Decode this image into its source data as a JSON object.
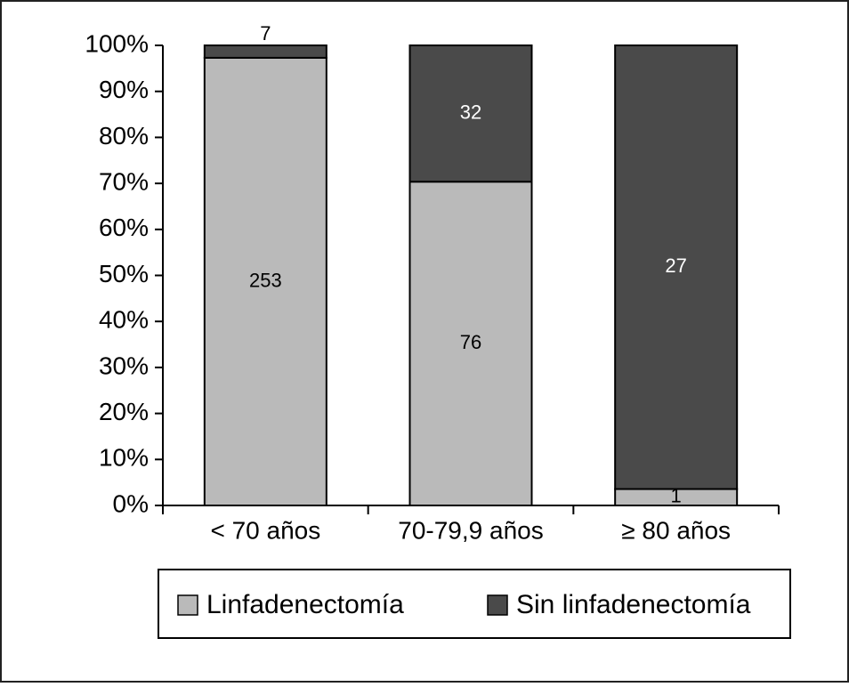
{
  "chart_data": {
    "type": "bar",
    "stacking": "percent",
    "categories": [
      "< 70 años",
      "70-79,9 años",
      "≥ 80 años"
    ],
    "series": [
      {
        "name": "Linfadenectomía",
        "color": "#bababa",
        "values": [
          253,
          76,
          1
        ]
      },
      {
        "name": "Sin linfadenectomía",
        "color": "#4a4a4a",
        "values": [
          7,
          32,
          27
        ]
      }
    ],
    "ylim": [
      0,
      100
    ],
    "yticks": [
      {
        "value": 0,
        "label": "0%"
      },
      {
        "value": 10,
        "label": "10%"
      },
      {
        "value": 20,
        "label": "20%"
      },
      {
        "value": 30,
        "label": "30%"
      },
      {
        "value": 40,
        "label": "40%"
      },
      {
        "value": 50,
        "label": "50%"
      },
      {
        "value": 60,
        "label": "60%"
      },
      {
        "value": 70,
        "label": "70%"
      },
      {
        "value": 80,
        "label": "80%"
      },
      {
        "value": 90,
        "label": "90%"
      },
      {
        "value": 100,
        "label": "100%"
      }
    ],
    "legend": "bottom"
  }
}
